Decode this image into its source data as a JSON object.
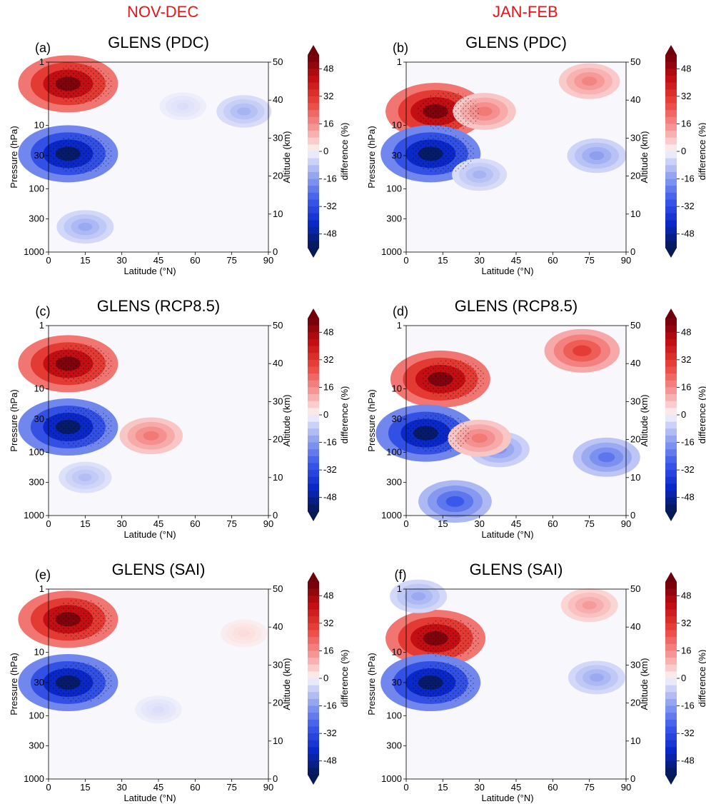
{
  "column_titles": {
    "left": "NOV-DEC",
    "right": "JAN-FEB"
  },
  "colors": {
    "column_title": "#e8141a",
    "positive": "#b2182b",
    "negative": "#2166ac"
  },
  "chart_data": [
    {
      "type": "heatmap",
      "panel_label": "(a)",
      "title": "GLENS (PDC)",
      "column": "NOV-DEC",
      "xlabel": "Latitude ($^\\circ N$)",
      "ylabel": "Pressure (hPa)",
      "ylabel_right": "Altitude (km)",
      "colorbar_label": "difference (%)",
      "x_ticks": [
        0,
        15,
        30,
        45,
        60,
        75,
        90
      ],
      "y_ticks_pressure": [
        1,
        10,
        30,
        100,
        300,
        1000
      ],
      "y_ticks_altitude": [
        0,
        10,
        20,
        30,
        40,
        50
      ],
      "colorbar_ticks": [
        48,
        32,
        16,
        0,
        -16,
        -32,
        -48
      ],
      "xlim": [
        0,
        90
      ],
      "ylim_pressure": [
        1000,
        1
      ],
      "clim": [
        -56,
        56
      ],
      "features": [
        {
          "lat": 8,
          "pressure": 2.2,
          "value": 56
        },
        {
          "lat": 8,
          "pressure": 28,
          "value": -56
        },
        {
          "lat": 80,
          "pressure": 6,
          "value": -12
        },
        {
          "lat": 15,
          "pressure": 400,
          "value": -14
        },
        {
          "lat": 55,
          "pressure": 5,
          "value": -4
        }
      ]
    },
    {
      "type": "heatmap",
      "panel_label": "(b)",
      "title": "GLENS (PDC)",
      "column": "JAN-FEB",
      "xlabel": "Latitude ($^\\circ N$)",
      "ylabel": "Pressure (hPa)",
      "ylabel_right": "Altitude (km)",
      "colorbar_label": "difference (%)",
      "x_ticks": [
        0,
        15,
        30,
        45,
        60,
        75,
        90
      ],
      "y_ticks_pressure": [
        1,
        10,
        30,
        100,
        300,
        1000
      ],
      "y_ticks_altitude": [
        0,
        10,
        20,
        30,
        40,
        50
      ],
      "colorbar_ticks": [
        48,
        32,
        16,
        0,
        -16,
        -32,
        -48
      ],
      "xlim": [
        0,
        90
      ],
      "ylim_pressure": [
        1000,
        1
      ],
      "clim": [
        -56,
        56
      ],
      "features": [
        {
          "lat": 12,
          "pressure": 6,
          "value": 56
        },
        {
          "lat": 10,
          "pressure": 28,
          "value": -56
        },
        {
          "lat": 32,
          "pressure": 6,
          "value": 20
        },
        {
          "lat": 75,
          "pressure": 2,
          "value": 18
        },
        {
          "lat": 78,
          "pressure": 30,
          "value": -16
        },
        {
          "lat": 30,
          "pressure": 60,
          "value": -12
        }
      ]
    },
    {
      "type": "heatmap",
      "panel_label": "(c)",
      "title": "GLENS (RCP8.5)",
      "column": "NOV-DEC",
      "xlabel": "Latitude ($^\\circ N$)",
      "ylabel": "Pressure (hPa)",
      "ylabel_right": "Altitude (km)",
      "colorbar_label": "difference (%)",
      "x_ticks": [
        0,
        15,
        30,
        45,
        60,
        75,
        90
      ],
      "y_ticks_pressure": [
        1,
        10,
        30,
        100,
        300,
        1000
      ],
      "y_ticks_altitude": [
        0,
        10,
        20,
        30,
        40,
        50
      ],
      "colorbar_ticks": [
        48,
        32,
        16,
        0,
        -16,
        -32,
        -48
      ],
      "xlim": [
        0,
        90
      ],
      "ylim_pressure": [
        1000,
        1
      ],
      "clim": [
        -56,
        56
      ],
      "features": [
        {
          "lat": 8,
          "pressure": 4,
          "value": 56
        },
        {
          "lat": 8,
          "pressure": 40,
          "value": -56
        },
        {
          "lat": 42,
          "pressure": 55,
          "value": 20
        },
        {
          "lat": 15,
          "pressure": 250,
          "value": -10
        }
      ]
    },
    {
      "type": "heatmap",
      "panel_label": "(d)",
      "title": "GLENS (RCP8.5)",
      "column": "JAN-FEB",
      "xlabel": "Latitude ($^\\circ N$)",
      "ylabel": "Pressure (hPa)",
      "ylabel_right": "Altitude (km)",
      "colorbar_label": "difference (%)",
      "x_ticks": [
        0,
        15,
        30,
        45,
        60,
        75,
        90
      ],
      "y_ticks_pressure": [
        1,
        10,
        30,
        100,
        300,
        1000
      ],
      "y_ticks_altitude": [
        0,
        10,
        20,
        30,
        40,
        50
      ],
      "colorbar_ticks": [
        48,
        32,
        16,
        0,
        -16,
        -32,
        -48
      ],
      "xlim": [
        0,
        90
      ],
      "ylim_pressure": [
        1000,
        1
      ],
      "clim": [
        -56,
        56
      ],
      "features": [
        {
          "lat": 14,
          "pressure": 7,
          "value": 56
        },
        {
          "lat": 8,
          "pressure": 50,
          "value": -56
        },
        {
          "lat": 72,
          "pressure": 2.5,
          "value": 32
        },
        {
          "lat": 82,
          "pressure": 120,
          "value": -24
        },
        {
          "lat": 38,
          "pressure": 90,
          "value": -18
        },
        {
          "lat": 30,
          "pressure": 60,
          "value": 20
        },
        {
          "lat": 20,
          "pressure": 600,
          "value": -30
        }
      ]
    },
    {
      "type": "heatmap",
      "panel_label": "(e)",
      "title": "GLENS (SAI)",
      "column": "NOV-DEC",
      "xlabel": "Latitude ($^\\circ N$)",
      "ylabel": "Pressure (hPa)",
      "ylabel_right": "Altitude (km)",
      "colorbar_label": "difference (%)",
      "x_ticks": [
        0,
        15,
        30,
        45,
        60,
        75,
        90
      ],
      "y_ticks_pressure": [
        1,
        10,
        30,
        100,
        300,
        1000
      ],
      "y_ticks_altitude": [
        0,
        10,
        20,
        30,
        40,
        50
      ],
      "colorbar_ticks": [
        48,
        32,
        16,
        0,
        -16,
        -32,
        -48
      ],
      "xlim": [
        0,
        90
      ],
      "ylim_pressure": [
        1000,
        1
      ],
      "clim": [
        -56,
        56
      ],
      "features": [
        {
          "lat": 8,
          "pressure": 3,
          "value": 56
        },
        {
          "lat": 8,
          "pressure": 30,
          "value": -56
        },
        {
          "lat": 80,
          "pressure": 5,
          "value": 4
        },
        {
          "lat": 45,
          "pressure": 80,
          "value": -4
        }
      ]
    },
    {
      "type": "heatmap",
      "panel_label": "(f)",
      "title": "GLENS (SAI)",
      "column": "JAN-FEB",
      "xlabel": "Latitude ($^\\circ N$)",
      "ylabel": "Pressure (hPa)",
      "ylabel_right": "Altitude (km)",
      "colorbar_label": "difference (%)",
      "x_ticks": [
        0,
        15,
        30,
        45,
        60,
        75,
        90
      ],
      "y_ticks_pressure": [
        1,
        10,
        30,
        100,
        300,
        1000
      ],
      "y_ticks_altitude": [
        0,
        10,
        20,
        30,
        40,
        50
      ],
      "colorbar_ticks": [
        48,
        32,
        16,
        0,
        -16,
        -32,
        -48
      ],
      "xlim": [
        0,
        90
      ],
      "ylim_pressure": [
        1000,
        1
      ],
      "clim": [
        -56,
        56
      ],
      "features": [
        {
          "lat": 12,
          "pressure": 6,
          "value": 56
        },
        {
          "lat": 10,
          "pressure": 30,
          "value": -56
        },
        {
          "lat": 75,
          "pressure": 1.8,
          "value": 14
        },
        {
          "lat": 78,
          "pressure": 25,
          "value": -14
        },
        {
          "lat": 5,
          "pressure": 1.3,
          "value": -14
        }
      ]
    }
  ]
}
